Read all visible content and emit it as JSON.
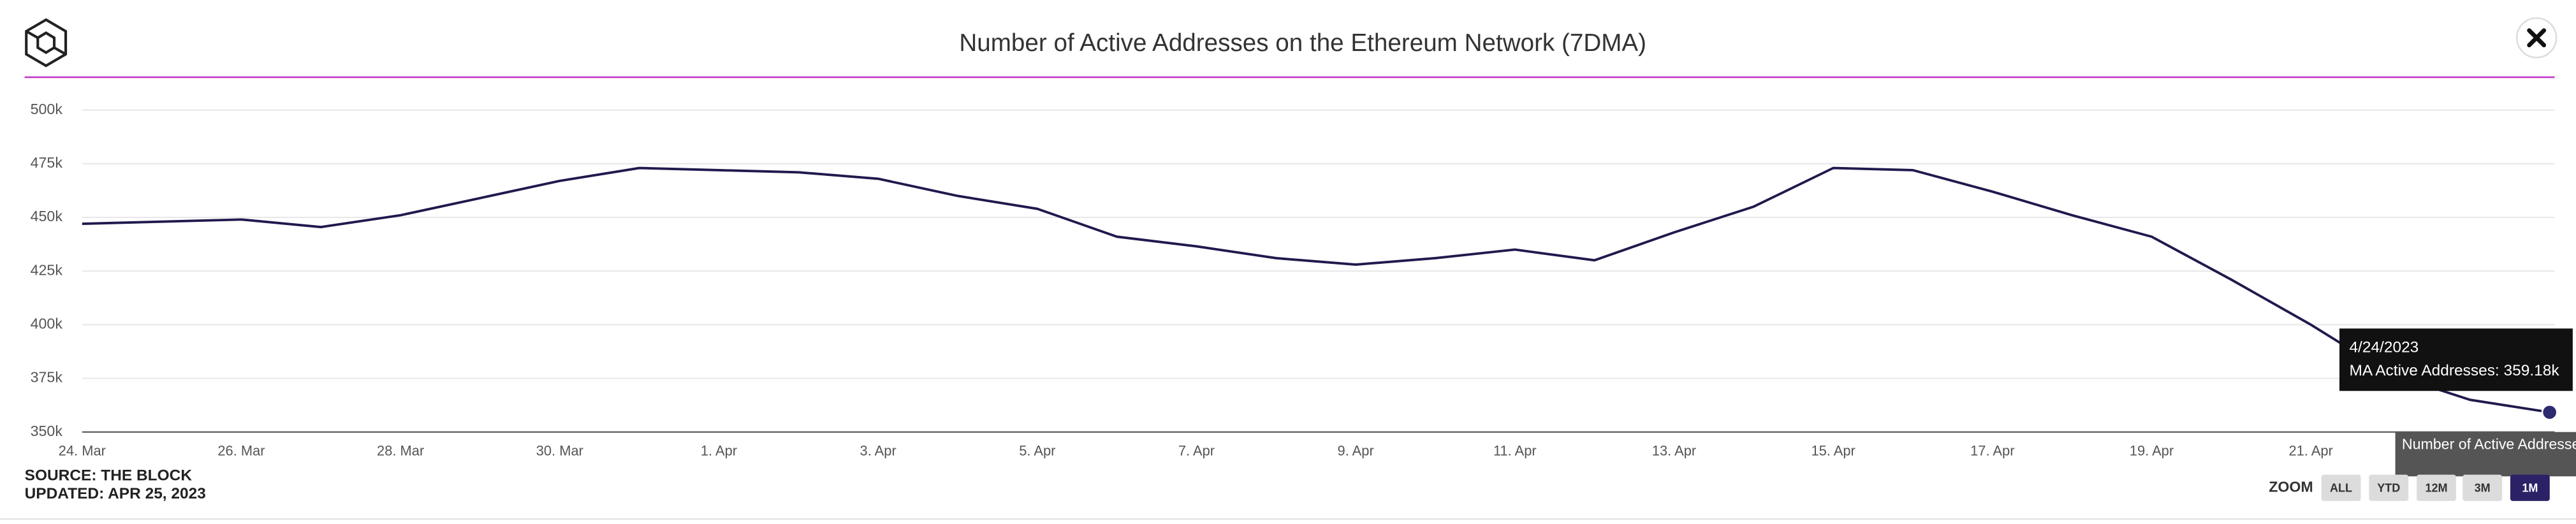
{
  "chart_data": {
    "type": "line",
    "title": "Number of Active Addresses on the Ethereum Network (7DMA)",
    "categories": [
      "24. Mar",
      null,
      "26. Mar",
      null,
      "28. Mar",
      null,
      "30. Mar",
      null,
      "1. Apr",
      null,
      "3. Apr",
      null,
      "5. Apr",
      null,
      "7. Apr",
      null,
      "9. Apr",
      null,
      "11. Apr",
      null,
      "13. Apr",
      null,
      "15. Apr",
      null,
      "17. Apr",
      null,
      "19. Apr",
      null,
      "21. Apr",
      null,
      null,
      null
    ],
    "series": [
      {
        "name": "Number of Active Addresses on the Ethereum Network (7DMA)",
        "color": "#1f1a4d",
        "values": [
          447000,
          448000,
          449000,
          445500,
          451000,
          459000,
          467000,
          473000,
          472000,
          471000,
          468000,
          460000,
          454000,
          441000,
          436500,
          431000,
          428000,
          431000,
          435000,
          430000,
          443000,
          455000,
          473000,
          472000,
          462000,
          451000,
          441000,
          421000,
          400000,
          377000,
          365000,
          359180
        ]
      }
    ],
    "ylim": [
      350000,
      500000
    ],
    "yticks": [
      {
        "value": 350000,
        "label": "350k"
      },
      {
        "value": 375000,
        "label": "375k"
      },
      {
        "value": 400000,
        "label": "400k"
      },
      {
        "value": 425000,
        "label": "425k"
      },
      {
        "value": 450000,
        "label": "450k"
      },
      {
        "value": 475000,
        "label": "475k"
      },
      {
        "value": 500000,
        "label": "500k"
      }
    ],
    "grid": true,
    "tooltip": {
      "date": "4/24/2023",
      "label": "MA Active Addresses: 359.18k"
    },
    "source": "SOURCE: THE BLOCK",
    "updated": "UPDATED: APR 25, 2023",
    "zoom": {
      "label": "ZOOM",
      "buttons": [
        "ALL",
        "YTD",
        "12M",
        "3M",
        "1M"
      ],
      "active": 4
    }
  }
}
